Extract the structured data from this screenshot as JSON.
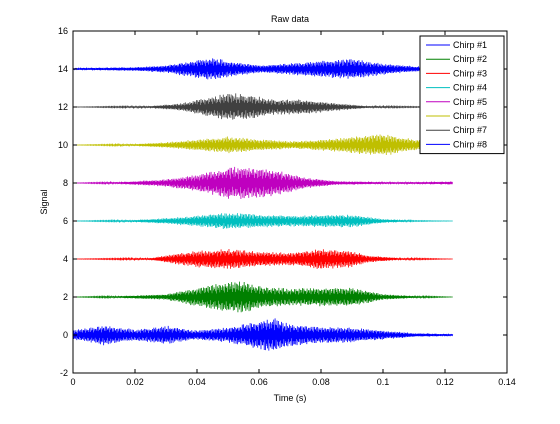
{
  "chart_data": {
    "type": "line",
    "title": "Raw data",
    "xlabel": "Time (s)",
    "ylabel": "Signal",
    "xlim": [
      0,
      0.14
    ],
    "ylim": [
      -2,
      16
    ],
    "xticks": [
      0,
      0.02,
      0.04,
      0.06,
      0.08,
      0.1,
      0.12,
      0.14
    ],
    "xtick_labels": [
      "0",
      "0.02",
      "0.04",
      "0.06",
      "0.08",
      "0.1",
      "0.12",
      "0.14"
    ],
    "yticks": [
      -2,
      0,
      2,
      4,
      6,
      8,
      10,
      12,
      14,
      16
    ],
    "ytick_labels": [
      "-2",
      "0",
      "2",
      "4",
      "6",
      "8",
      "10",
      "12",
      "14",
      "16"
    ],
    "grid": false,
    "legend_position": "top-right",
    "series": [
      {
        "name": "Chirp #1",
        "color": "#0000ff",
        "offset": 0,
        "x_end": 0.1225,
        "envelope": [
          [
            0.0,
            0.25
          ],
          [
            0.01,
            0.55
          ],
          [
            0.02,
            0.3
          ],
          [
            0.03,
            0.5
          ],
          [
            0.04,
            0.25
          ],
          [
            0.05,
            0.4
          ],
          [
            0.06,
            0.8
          ],
          [
            0.065,
            0.95
          ],
          [
            0.07,
            0.6
          ],
          [
            0.08,
            0.45
          ],
          [
            0.09,
            0.4
          ],
          [
            0.1,
            0.25
          ],
          [
            0.11,
            0.1
          ],
          [
            0.1225,
            0.05
          ]
        ]
      },
      {
        "name": "Chirp #2",
        "color": "#008000",
        "offset": 2,
        "x_end": 0.1225,
        "envelope": [
          [
            0.0,
            0.0
          ],
          [
            0.015,
            0.05
          ],
          [
            0.03,
            0.15
          ],
          [
            0.04,
            0.5
          ],
          [
            0.05,
            0.8
          ],
          [
            0.055,
            0.85
          ],
          [
            0.06,
            0.6
          ],
          [
            0.07,
            0.45
          ],
          [
            0.08,
            0.5
          ],
          [
            0.09,
            0.5
          ],
          [
            0.1,
            0.15
          ],
          [
            0.11,
            0.05
          ],
          [
            0.1225,
            0.0
          ]
        ]
      },
      {
        "name": "Chirp #3",
        "color": "#ff0000",
        "offset": 4,
        "x_end": 0.1225,
        "envelope": [
          [
            0.0,
            0.0
          ],
          [
            0.025,
            0.05
          ],
          [
            0.03,
            0.2
          ],
          [
            0.04,
            0.45
          ],
          [
            0.05,
            0.55
          ],
          [
            0.06,
            0.4
          ],
          [
            0.07,
            0.35
          ],
          [
            0.08,
            0.55
          ],
          [
            0.09,
            0.45
          ],
          [
            0.095,
            0.2
          ],
          [
            0.105,
            0.05
          ],
          [
            0.1225,
            0.0
          ]
        ]
      },
      {
        "name": "Chirp #4",
        "color": "#00bfbf",
        "offset": 6,
        "x_end": 0.1225,
        "envelope": [
          [
            0.0,
            0.0
          ],
          [
            0.02,
            0.05
          ],
          [
            0.03,
            0.15
          ],
          [
            0.04,
            0.3
          ],
          [
            0.05,
            0.45
          ],
          [
            0.06,
            0.35
          ],
          [
            0.07,
            0.3
          ],
          [
            0.09,
            0.35
          ],
          [
            0.1,
            0.1
          ],
          [
            0.11,
            0.02
          ],
          [
            0.1225,
            0.0
          ]
        ]
      },
      {
        "name": "Chirp #5",
        "color": "#bf00bf",
        "offset": 8,
        "x_end": 0.1225,
        "envelope": [
          [
            0.0,
            0.0
          ],
          [
            0.015,
            0.05
          ],
          [
            0.03,
            0.2
          ],
          [
            0.04,
            0.45
          ],
          [
            0.05,
            0.85
          ],
          [
            0.055,
            0.9
          ],
          [
            0.065,
            0.7
          ],
          [
            0.075,
            0.3
          ],
          [
            0.085,
            0.1
          ],
          [
            0.1,
            0.05
          ],
          [
            0.11,
            0.05
          ],
          [
            0.1225,
            0.08
          ]
        ]
      },
      {
        "name": "Chirp #6",
        "color": "#bfbf00",
        "offset": 10,
        "x_end": 0.1225,
        "envelope": [
          [
            0.0,
            0.0
          ],
          [
            0.02,
            0.05
          ],
          [
            0.03,
            0.15
          ],
          [
            0.04,
            0.3
          ],
          [
            0.05,
            0.45
          ],
          [
            0.06,
            0.3
          ],
          [
            0.07,
            0.2
          ],
          [
            0.08,
            0.3
          ],
          [
            0.09,
            0.45
          ],
          [
            0.1,
            0.6
          ],
          [
            0.11,
            0.3
          ],
          [
            0.1225,
            0.05
          ]
        ]
      },
      {
        "name": "Chirp #7",
        "color": "#404040",
        "offset": 12,
        "x_end": 0.1225,
        "envelope": [
          [
            0.0,
            0.0
          ],
          [
            0.025,
            0.05
          ],
          [
            0.035,
            0.2
          ],
          [
            0.045,
            0.55
          ],
          [
            0.05,
            0.75
          ],
          [
            0.055,
            0.7
          ],
          [
            0.065,
            0.4
          ],
          [
            0.075,
            0.4
          ],
          [
            0.085,
            0.2
          ],
          [
            0.095,
            0.05
          ],
          [
            0.11,
            0.02
          ],
          [
            0.1225,
            0.0
          ]
        ]
      },
      {
        "name": "Chirp #8",
        "color": "#0000ff",
        "offset": 14,
        "x_end": 0.1225,
        "envelope": [
          [
            0.0,
            0.05
          ],
          [
            0.02,
            0.1
          ],
          [
            0.03,
            0.2
          ],
          [
            0.04,
            0.5
          ],
          [
            0.045,
            0.6
          ],
          [
            0.05,
            0.45
          ],
          [
            0.06,
            0.2
          ],
          [
            0.07,
            0.3
          ],
          [
            0.08,
            0.45
          ],
          [
            0.09,
            0.55
          ],
          [
            0.1,
            0.3
          ],
          [
            0.11,
            0.15
          ],
          [
            0.1225,
            0.1
          ]
        ]
      }
    ]
  }
}
